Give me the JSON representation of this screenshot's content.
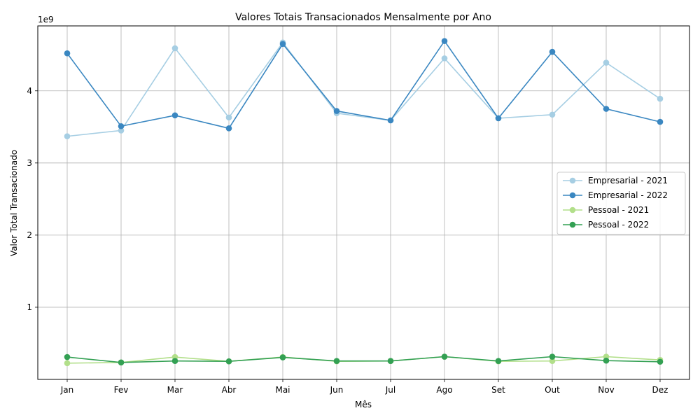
{
  "chart_data": {
    "type": "line",
    "title": "Valores Totais Transacionados Mensalmente por Ano",
    "xlabel": "Mês",
    "ylabel": "Valor Total Transacionado",
    "y_offset_label": "1e9",
    "categories": [
      "Jan",
      "Fev",
      "Mar",
      "Abr",
      "Mai",
      "Jun",
      "Jul",
      "Ago",
      "Set",
      "Out",
      "Nov",
      "Dez"
    ],
    "ylim": [
      0,
      4900000000
    ],
    "yticks": [
      1000000000,
      2000000000,
      3000000000,
      4000000000
    ],
    "ytick_labels": [
      "1",
      "2",
      "3",
      "4"
    ],
    "grid": true,
    "legend_position": "center-right",
    "series": [
      {
        "name": "Empresarial - 2021",
        "color": "#a6cee3",
        "values": [
          3370000000,
          3450000000,
          4590000000,
          3630000000,
          4670000000,
          3690000000,
          3590000000,
          4450000000,
          3620000000,
          3670000000,
          4390000000,
          3890000000
        ]
      },
      {
        "name": "Empresarial - 2022",
        "color": "#3a87c1",
        "values": [
          4520000000,
          3510000000,
          3660000000,
          3480000000,
          4650000000,
          3720000000,
          3590000000,
          4690000000,
          3620000000,
          4540000000,
          3750000000,
          3570000000
        ]
      },
      {
        "name": "Pessoal - 2021",
        "color": "#b2df8a",
        "values": [
          225000000,
          235000000,
          310000000,
          250000000,
          310000000,
          250000000,
          255000000,
          315000000,
          250000000,
          255000000,
          315000000,
          270000000
        ]
      },
      {
        "name": "Pessoal - 2022",
        "color": "#33a053",
        "values": [
          310000000,
          235000000,
          255000000,
          250000000,
          305000000,
          255000000,
          255000000,
          315000000,
          255000000,
          315000000,
          260000000,
          245000000
        ]
      }
    ]
  }
}
